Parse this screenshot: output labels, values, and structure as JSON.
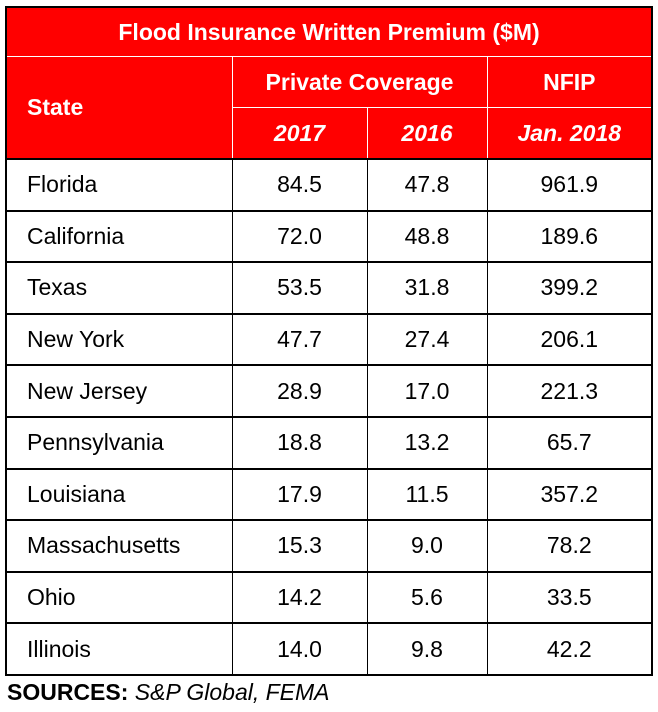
{
  "chart_data": {
    "type": "table",
    "title": "Flood Insurance Written Premium ($M)",
    "header": {
      "state": "State",
      "private_coverage": "Private Coverage",
      "nfip": "NFIP",
      "col_2017": "2017",
      "col_2016": "2016",
      "col_jan2018": "Jan. 2018"
    },
    "rows": [
      [
        "Florida",
        "84.5",
        "47.8",
        "961.9"
      ],
      [
        "California",
        "72.0",
        "48.8",
        "189.6"
      ],
      [
        "Texas",
        "53.5",
        "31.8",
        "399.2"
      ],
      [
        "New York",
        "47.7",
        "27.4",
        "206.1"
      ],
      [
        "New Jersey",
        "28.9",
        "17.0",
        "221.3"
      ],
      [
        "Pennsylvania",
        "18.8",
        "13.2",
        "65.7"
      ],
      [
        "Louisiana",
        "17.9",
        "11.5",
        "357.2"
      ],
      [
        "Massachusetts",
        "15.3",
        "9.0",
        "78.2"
      ],
      [
        "Ohio",
        "14.2",
        "5.6",
        "33.5"
      ],
      [
        "Illinois",
        "14.0",
        "9.8",
        "42.2"
      ]
    ],
    "colors": {
      "header_bg": "#ff0000",
      "header_text": "#ffffff"
    }
  },
  "sources": {
    "label": "SOURCES:",
    "text": "S&P Global, FEMA"
  }
}
